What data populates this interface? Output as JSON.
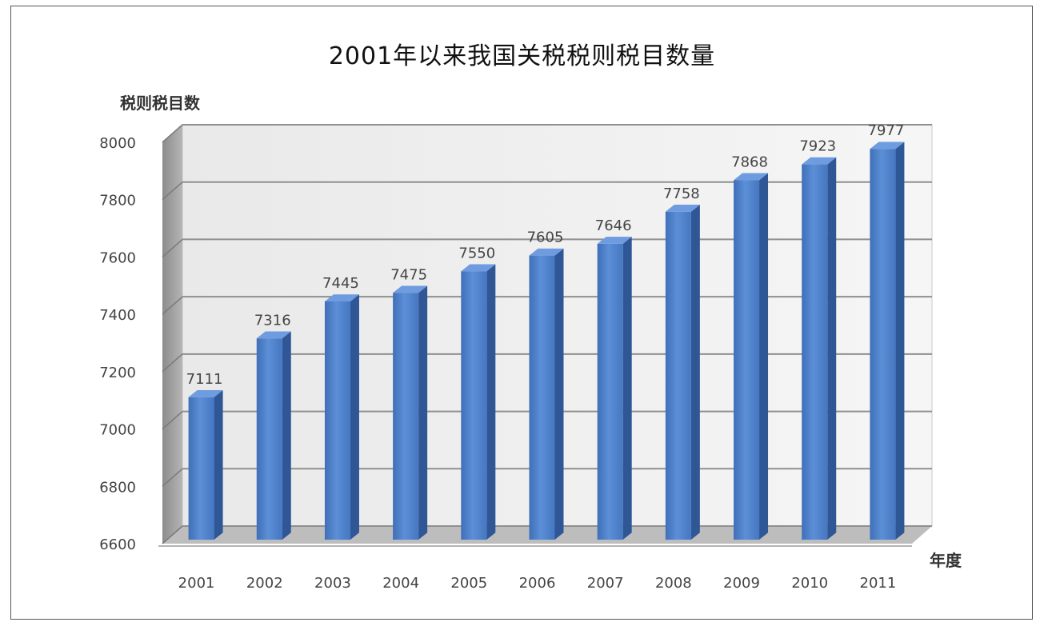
{
  "chart_data": {
    "type": "bar",
    "title": "2001年以来我国关税税则税目数量",
    "ylabel": "税则税目数",
    "xlabel": "年度",
    "categories": [
      "2001",
      "2002",
      "2003",
      "2004",
      "2005",
      "2006",
      "2007",
      "2008",
      "2009",
      "2010",
      "2011"
    ],
    "values": [
      7111,
      7316,
      7445,
      7475,
      7550,
      7605,
      7646,
      7758,
      7868,
      7923,
      7977
    ],
    "ylim": [
      6600,
      8000
    ],
    "yticks": [
      "6600",
      "6800",
      "7000",
      "7200",
      "7400",
      "7600",
      "7800",
      "8000"
    ],
    "grid": true,
    "bar_color": "#4a7cc4"
  }
}
